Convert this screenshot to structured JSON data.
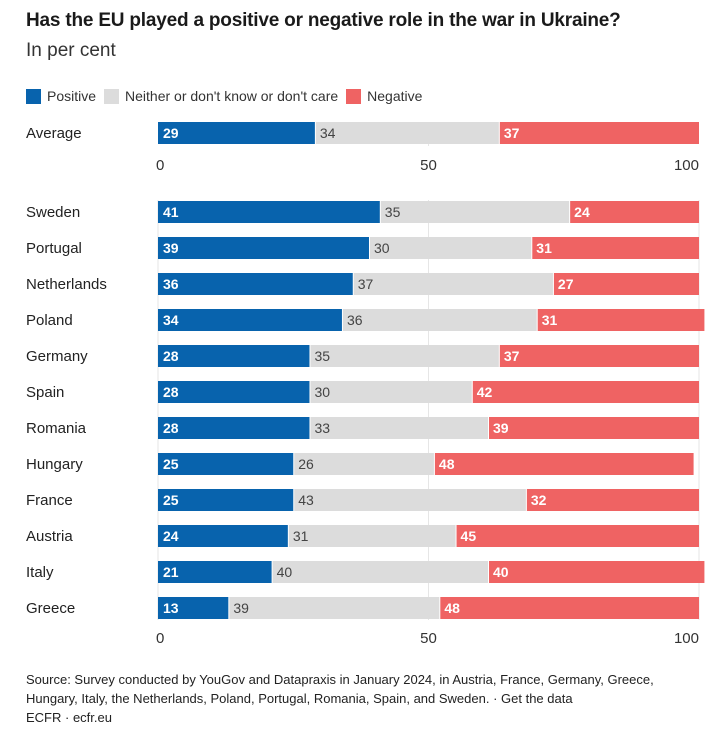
{
  "chart_data": {
    "type": "bar",
    "stacked": true,
    "orientation": "horizontal",
    "title": "Has the EU played a positive or negative role in the war in Ukraine?",
    "subtitle": "In per cent",
    "xlabel": "",
    "ylabel": "",
    "xlim": [
      0,
      100
    ],
    "xticks": [
      0,
      50,
      100
    ],
    "grid": true,
    "legend_position": "top-left",
    "legend": [
      "Positive",
      "Neither or don't know or don't care",
      "Negative"
    ],
    "colors": {
      "positive": "#0863ad",
      "neither": "#dcdcdc",
      "negative": "#ef6363"
    },
    "average": {
      "category": "Average",
      "positive": 29,
      "neither": 34,
      "negative": 37
    },
    "categories": [
      "Sweden",
      "Portugal",
      "Netherlands",
      "Poland",
      "Germany",
      "Spain",
      "Romania",
      "Hungary",
      "France",
      "Austria",
      "Italy",
      "Greece"
    ],
    "series": [
      {
        "name": "Positive",
        "values": [
          41,
          39,
          36,
          34,
          28,
          28,
          28,
          25,
          25,
          24,
          21,
          13
        ]
      },
      {
        "name": "Neither or don't know or don't care",
        "values": [
          35,
          30,
          37,
          36,
          35,
          30,
          33,
          26,
          43,
          31,
          40,
          39
        ]
      },
      {
        "name": "Negative",
        "values": [
          24,
          31,
          27,
          31,
          37,
          42,
          39,
          48,
          32,
          45,
          40,
          48
        ]
      }
    ]
  },
  "source": {
    "text": "Source: Survey conducted by YouGov and Datapraxis in January 2024, in Austria, France, Germany, Greece, Hungary, Italy, the Netherlands, Poland, Portugal, Romania, Spain, and Sweden. · ",
    "link": "Get the data",
    "credit": "ECFR · ecfr.eu"
  }
}
